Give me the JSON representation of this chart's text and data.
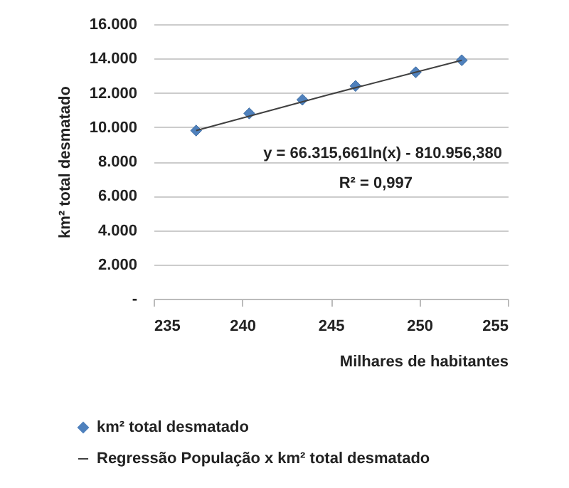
{
  "chart_data": {
    "type": "scatter",
    "xlabel": "Milhares de habitantes",
    "ylabel": "km² total desmatado",
    "xlim": [
      235,
      255
    ],
    "xticks": [
      235,
      240,
      245,
      250,
      255
    ],
    "ylim": [
      0,
      16000
    ],
    "yticks": [
      {
        "value": 0,
        "label": "-"
      },
      {
        "value": 2000,
        "label": "2.000"
      },
      {
        "value": 4000,
        "label": "4.000"
      },
      {
        "value": 6000,
        "label": "6.000"
      },
      {
        "value": 8000,
        "label": "8.000"
      },
      {
        "value": 10000,
        "label": "10.000"
      },
      {
        "value": 12000,
        "label": "12.000"
      },
      {
        "value": 14000,
        "label": "14.000"
      },
      {
        "value": 16000,
        "label": "16.000"
      }
    ],
    "grid": "y",
    "legend": "bottom",
    "x": [
      237.4,
      240.4,
      243.4,
      246.4,
      249.8,
      252.4
    ],
    "series": [
      {
        "name": "km² total desmatado",
        "marker": "diamond",
        "color": "#4f81bd",
        "values": [
          9800,
          10800,
          11600,
          12400,
          13200,
          13900
        ]
      },
      {
        "name": "Regressão População x km² total desmatado",
        "type": "line",
        "color": "#404040",
        "line_style": "solid",
        "x": [
          237.4,
          244.9,
          252.4
        ],
        "values": [
          9800,
          11900,
          13900
        ]
      }
    ],
    "annotations": [
      "y = 66.315,661ln(x) - 810.956,380",
      "R² = 0,997"
    ]
  }
}
